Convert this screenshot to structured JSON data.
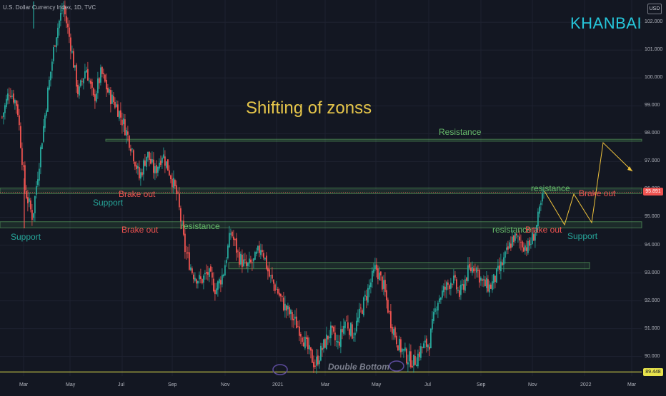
{
  "header": {
    "symbol_line": "U.S. Dollar Currency Index, 1D, TVC",
    "currency": "USD"
  },
  "brand": "KHANBAI",
  "chart_data": {
    "type": "candlestick",
    "title": "Shifting of zonss",
    "y_axis": {
      "ticks": [
        "102.000",
        "101.000",
        "100.000",
        "99.000",
        "98.000",
        "97.000",
        "96.000",
        "95.000",
        "94.000",
        "93.000",
        "92.000",
        "91.000",
        "90.000"
      ],
      "range": [
        89.3,
        102.8
      ]
    },
    "x_axis": {
      "ticks": [
        "Mar",
        "May",
        "Jul",
        "Sep",
        "Nov",
        "2021",
        "Mar",
        "May",
        "Jul",
        "Sep",
        "Nov",
        "2022",
        "Mar"
      ]
    },
    "price_labels": {
      "current": "95.891",
      "low_line": "89.448"
    },
    "close_path": [
      {
        "x": "Mar",
        "y": 98.6
      },
      {
        "x": "Mar",
        "y": 99.6
      },
      {
        "x": "Mar",
        "y": 99.0
      },
      {
        "x": "Mar",
        "y": 96.0
      },
      {
        "x": "Mar",
        "y": 95.0
      },
      {
        "x": "Mar",
        "y": 97.3
      },
      {
        "x": "Mar",
        "y": 99.5
      },
      {
        "x": "Mar",
        "y": 101.5
      },
      {
        "x": "Mar",
        "y": 102.6
      },
      {
        "x": "Mar",
        "y": 101.2
      },
      {
        "x": "Mar",
        "y": 99.4
      },
      {
        "x": "Mar",
        "y": 100.4
      },
      {
        "x": "May",
        "y": 99.2
      },
      {
        "x": "May",
        "y": 100.2
      },
      {
        "x": "May",
        "y": 99.4
      },
      {
        "x": "May",
        "y": 99.0
      },
      {
        "x": "May",
        "y": 98.3
      },
      {
        "x": "May",
        "y": 97.5
      },
      {
        "x": "Jul",
        "y": 96.4
      },
      {
        "x": "Jul",
        "y": 97.3
      },
      {
        "x": "Jul",
        "y": 96.6
      },
      {
        "x": "Jul",
        "y": 97.3
      },
      {
        "x": "Jul",
        "y": 96.6
      },
      {
        "x": "Jul",
        "y": 95.7
      },
      {
        "x": "Jul",
        "y": 93.8
      },
      {
        "x": "Jul",
        "y": 93.0
      },
      {
        "x": "Sep",
        "y": 92.7
      },
      {
        "x": "Sep",
        "y": 93.0
      },
      {
        "x": "Sep",
        "y": 92.4
      },
      {
        "x": "Sep",
        "y": 93.0
      },
      {
        "x": "Sep",
        "y": 94.5
      },
      {
        "x": "Sep",
        "y": 93.6
      },
      {
        "x": "Sep",
        "y": 93.2
      },
      {
        "x": "Nov",
        "y": 93.4
      },
      {
        "x": "Nov",
        "y": 94.0
      },
      {
        "x": "Nov",
        "y": 92.9
      },
      {
        "x": "Nov",
        "y": 92.4
      },
      {
        "x": "Nov",
        "y": 91.8
      },
      {
        "x": "Nov",
        "y": 91.4
      },
      {
        "x": "Nov",
        "y": 91.0
      },
      {
        "x": "Nov",
        "y": 90.3
      },
      {
        "x": "2021",
        "y": 89.7
      },
      {
        "x": "2021",
        "y": 90.3
      },
      {
        "x": "2021",
        "y": 90.9
      },
      {
        "x": "2021",
        "y": 90.4
      },
      {
        "x": "2021",
        "y": 91.3
      },
      {
        "x": "Mar",
        "y": 90.8
      },
      {
        "x": "Mar",
        "y": 91.6
      },
      {
        "x": "Mar",
        "y": 92.4
      },
      {
        "x": "Mar",
        "y": 93.2
      },
      {
        "x": "Mar",
        "y": 92.5
      },
      {
        "x": "May",
        "y": 91.2
      },
      {
        "x": "May",
        "y": 90.4
      },
      {
        "x": "May",
        "y": 90.0
      },
      {
        "x": "May",
        "y": 89.8
      },
      {
        "x": "May",
        "y": 90.3
      },
      {
        "x": "May",
        "y": 90.5
      },
      {
        "x": "Jul",
        "y": 92.0
      },
      {
        "x": "Jul",
        "y": 92.4
      },
      {
        "x": "Jul",
        "y": 92.8
      },
      {
        "x": "Jul",
        "y": 92.2
      },
      {
        "x": "Jul",
        "y": 93.0
      },
      {
        "x": "Jul",
        "y": 93.3
      },
      {
        "x": "Sep",
        "y": 92.6
      },
      {
        "x": "Sep",
        "y": 92.5
      },
      {
        "x": "Sep",
        "y": 93.0
      },
      {
        "x": "Sep",
        "y": 93.6
      },
      {
        "x": "Sep",
        "y": 94.3
      },
      {
        "x": "Nov",
        "y": 94.1
      },
      {
        "x": "Nov",
        "y": 93.9
      },
      {
        "x": "Nov",
        "y": 94.6
      },
      {
        "x": "Nov",
        "y": 95.9
      }
    ],
    "zones": [
      {
        "name": "Resistance",
        "from": 97.73,
        "to": 97.8,
        "color": "#66bb6a"
      },
      {
        "name": "Brake out",
        "from": 95.85,
        "to": 96.05,
        "color": "#66bb6a"
      },
      {
        "name": "Support",
        "from": 94.62,
        "to": 94.84,
        "color": "#66bb6a"
      },
      {
        "name": "Zone",
        "from": 93.15,
        "to": 93.38,
        "color": "#66bb6a"
      }
    ],
    "annotations": [
      {
        "key": "resistance_top",
        "text": "Resistance",
        "color": "green"
      },
      {
        "key": "support_mid",
        "text": "Support",
        "color": "teal"
      },
      {
        "key": "brake_out_1",
        "text": "Brake   out",
        "color": "red"
      },
      {
        "key": "support_left",
        "text": "Support",
        "color": "teal"
      },
      {
        "key": "brake_out_2",
        "text": "Brake   out",
        "color": "red"
      },
      {
        "key": "resistance_mid",
        "text": "resistance",
        "color": "green"
      },
      {
        "key": "resistance_right",
        "text": "resistance",
        "color": "green"
      },
      {
        "key": "resistance_right2",
        "text": "resistance",
        "color": "green"
      },
      {
        "key": "brake_out_3",
        "text": "Brake out",
        "color": "red"
      },
      {
        "key": "brake_out_4",
        "text": "Brake out",
        "color": "red"
      },
      {
        "key": "support_right",
        "text": "Support",
        "color": "teal"
      },
      {
        "key": "double_bottom",
        "text": "Double Bottom",
        "color": "gray"
      }
    ],
    "colors": {
      "background": "#131722",
      "up": "#26a69a",
      "down": "#ef5350",
      "zone": "#66bb6a",
      "projection": "#f0c33c",
      "low_line": "#e8e34c"
    },
    "grid": true
  }
}
